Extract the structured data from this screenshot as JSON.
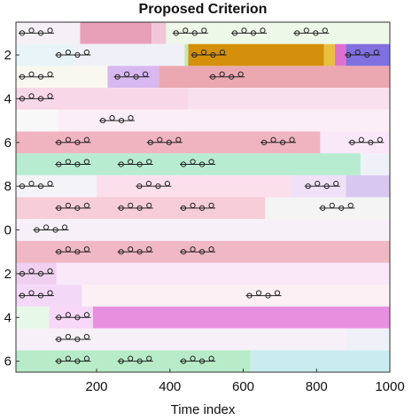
{
  "chart_data": {
    "type": "segments",
    "title": "Proposed Criterion",
    "xlabel": "Time index",
    "xlim": [
      -20,
      1000
    ],
    "xticks": [
      200,
      400,
      600,
      800,
      1000
    ],
    "ylim": [
      0.5,
      16.5
    ],
    "yticks": [
      2,
      4,
      6,
      8,
      {
        "value": 10,
        "label": "0"
      },
      {
        "value": 12,
        "label": "2"
      },
      {
        "value": 14,
        "label": "4"
      },
      {
        "value": 16,
        "label": "6"
      }
    ],
    "rows": [
      {
        "segments": [
          [
            -20,
            155,
            "#f5f0f5"
          ],
          [
            155,
            350,
            "#e8a0b8"
          ],
          [
            350,
            390,
            "#f0c8d8"
          ],
          [
            390,
            1000,
            "#eef8e8"
          ]
        ],
        "motifs": [
          -20,
          400,
          560,
          730
        ]
      },
      {
        "segments": [
          [
            -20,
            140,
            "#e8f4f8"
          ],
          [
            140,
            440,
            "#f0f0f8"
          ],
          [
            440,
            450,
            "#c8e8a8"
          ],
          [
            450,
            820,
            "#d4900a"
          ],
          [
            820,
            850,
            "#e8c040"
          ],
          [
            850,
            880,
            "#e070d0"
          ],
          [
            880,
            1000,
            "#8070e0"
          ]
        ],
        "motifs": [
          80,
          450,
          870
        ]
      },
      {
        "segments": [
          [
            -20,
            230,
            "#f8f8f0"
          ],
          [
            230,
            370,
            "#d8b8f0"
          ],
          [
            370,
            1000,
            "#eca8b0"
          ]
        ],
        "motifs": [
          -20,
          240,
          500
        ]
      },
      {
        "segments": [
          [
            -20,
            450,
            "#f8d8e8"
          ],
          [
            450,
            1000,
            "#f8e0ee"
          ]
        ],
        "motifs": [
          -20
        ]
      },
      {
        "segments": [
          [
            -20,
            95,
            "#f8f8f8"
          ],
          [
            95,
            1000,
            "#fbeef6"
          ]
        ],
        "motifs": [
          200
        ]
      },
      {
        "segments": [
          [
            -20,
            810,
            "#f0b4c0"
          ],
          [
            810,
            1000,
            "#f8e8f8"
          ]
        ],
        "motifs": [
          80,
          330,
          640,
          880
        ]
      },
      {
        "segments": [
          [
            -20,
            920,
            "#b8ecd0"
          ],
          [
            920,
            1000,
            "#f0f0f8"
          ]
        ],
        "motifs": [
          80,
          250,
          420
        ]
      },
      {
        "segments": [
          [
            -20,
            200,
            "#f4f4f8"
          ],
          [
            200,
            730,
            "#fbe0ec"
          ],
          [
            730,
            880,
            "#f0e0f8"
          ],
          [
            880,
            1000,
            "#d8c8f0"
          ]
        ],
        "motifs": [
          -20,
          300,
          760
        ]
      },
      {
        "segments": [
          [
            -20,
            660,
            "#f6cdd8"
          ],
          [
            660,
            1000,
            "#f4f4f4"
          ]
        ],
        "motifs": [
          80,
          250,
          420,
          800
        ]
      },
      {
        "segments": [
          [
            -20,
            1000,
            "#f8f0f8"
          ]
        ],
        "motifs": [
          20
        ]
      },
      {
        "segments": [
          [
            -20,
            1000,
            "#f0b8c4"
          ]
        ],
        "motifs": [
          80,
          250,
          420
        ]
      },
      {
        "segments": [
          [
            -20,
            90,
            "#f0d0f0"
          ],
          [
            90,
            1000,
            "#f8e8f8"
          ]
        ],
        "motifs": [
          -20
        ]
      },
      {
        "segments": [
          [
            -20,
            160,
            "#f4d8f8"
          ],
          [
            160,
            1000,
            "#fcf0f4"
          ]
        ],
        "motifs": [
          -20,
          600
        ]
      },
      {
        "segments": [
          [
            -20,
            70,
            "#e8f8e8"
          ],
          [
            70,
            190,
            "#f8d8f8"
          ],
          [
            190,
            1000,
            "#e890e0"
          ]
        ],
        "motifs": [
          80
        ]
      },
      {
        "segments": [
          [
            -20,
            880,
            "#f8f0f8"
          ],
          [
            880,
            1000,
            "#f0f0f8"
          ]
        ],
        "motifs": [
          80
        ]
      },
      {
        "segments": [
          [
            -20,
            620,
            "#b8ecc8"
          ],
          [
            620,
            1000,
            "#c8ecf0"
          ]
        ],
        "motifs": [
          80,
          250,
          420
        ]
      }
    ]
  }
}
